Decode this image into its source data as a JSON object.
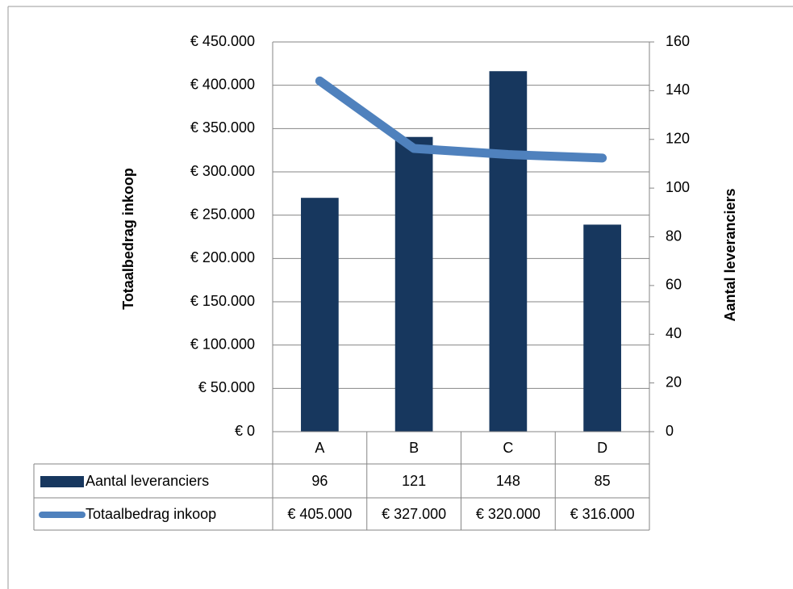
{
  "chart_data": {
    "type": "bar",
    "categories": [
      "A",
      "B",
      "C",
      "D"
    ],
    "ylabel": "Totaalbedrag inkoop",
    "y2label": "Aantal leveranciers",
    "ylim": [
      0,
      450000
    ],
    "yticks": [
      {
        "value": 0,
        "label": "€ 0"
      },
      {
        "value": 50000,
        "label": "€ 50.000"
      },
      {
        "value": 100000,
        "label": "€ 100.000"
      },
      {
        "value": 150000,
        "label": "€ 150.000"
      },
      {
        "value": 200000,
        "label": "€ 200.000"
      },
      {
        "value": 250000,
        "label": "€ 250.000"
      },
      {
        "value": 300000,
        "label": "€ 300.000"
      },
      {
        "value": 350000,
        "label": "€ 350.000"
      },
      {
        "value": 400000,
        "label": "€ 400.000"
      },
      {
        "value": 450000,
        "label": "€ 450.000"
      }
    ],
    "y2lim": [
      0,
      160
    ],
    "y2ticks": [
      0,
      20,
      40,
      60,
      80,
      100,
      120,
      140,
      160
    ],
    "grid": true,
    "series": [
      {
        "name": "Aantal leveranciers",
        "type": "bar",
        "axis": "y2",
        "color": "#17375e",
        "values": [
          96,
          121,
          148,
          85
        ]
      },
      {
        "name": "Totaalbedrag inkoop",
        "type": "line",
        "color": "#4f81bd",
        "values": [
          405000,
          327000,
          320000,
          316000
        ],
        "value_labels": [
          "€ 405.000",
          "€ 327.000",
          "€ 320.000",
          "€ 316.000"
        ]
      }
    ]
  }
}
